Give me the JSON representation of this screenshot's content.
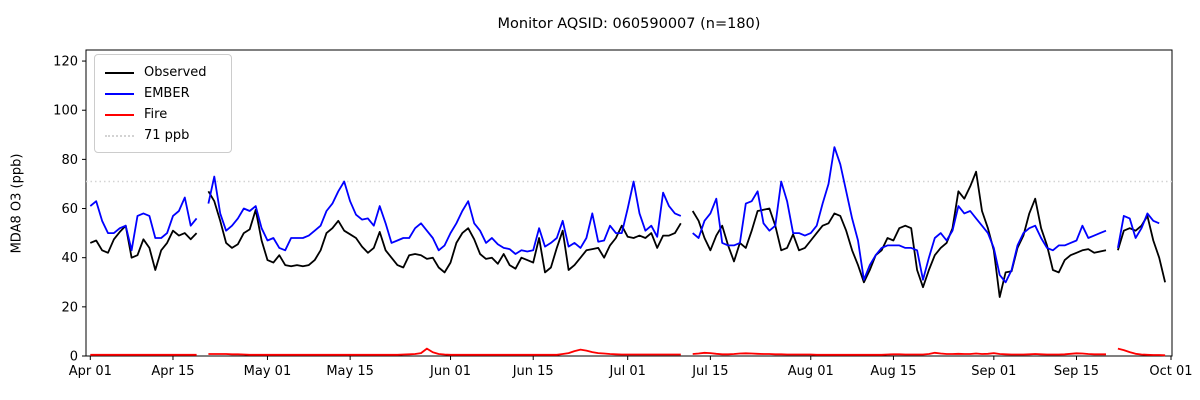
{
  "title": "Monitor AQSID: 060590007 (n=180)",
  "chart_data": {
    "type": "line",
    "title": "Monitor AQSID: 060590007 (n=180)",
    "xlabel": "",
    "ylabel": "MDA8 O3 (ppb)",
    "ylim": [
      0,
      124.5
    ],
    "grid": false,
    "legend_position": "upper left",
    "n_points": 180,
    "x_start_date": "Apr 01",
    "x_end_date": "Oct 01",
    "x_tick_labels": [
      "Apr 01",
      "Apr 15",
      "May 01",
      "May 15",
      "Jun 01",
      "Jun 15",
      "Jul 01",
      "Jul 15",
      "Aug 01",
      "Aug 15",
      "Sep 01",
      "Sep 15",
      "Oct 01"
    ],
    "x_tick_days": [
      0,
      14,
      30,
      44,
      61,
      75,
      91,
      105,
      122,
      136,
      153,
      167,
      183
    ],
    "y_ticks": [
      0,
      20,
      40,
      60,
      80,
      100,
      120
    ],
    "threshold": {
      "value": 71,
      "label": "71 ppb",
      "color": "#d3d3d3",
      "style": "dotted"
    },
    "legend": [
      {
        "label": "Observed",
        "color": "#000000",
        "style": "solid"
      },
      {
        "label": "EMBER",
        "color": "#0000ff",
        "style": "solid"
      },
      {
        "label": "Fire",
        "color": "#ff0000",
        "style": "solid"
      },
      {
        "label": "71 ppb",
        "color": "#d3d3d3",
        "style": "dotted"
      }
    ],
    "series": [
      {
        "name": "Observed",
        "color": "#000000",
        "values": [
          46,
          47,
          43,
          42,
          47.5,
          50.5,
          53,
          40,
          41,
          47.5,
          44,
          35,
          43,
          46,
          51,
          49,
          50,
          47.5,
          50,
          null,
          67,
          63,
          55,
          46,
          44,
          45.5,
          50,
          51.5,
          59.5,
          47,
          39,
          38,
          41,
          37,
          36.5,
          37,
          36.5,
          37,
          39,
          43,
          50,
          52,
          55,
          51,
          49.5,
          48,
          44.5,
          42,
          44,
          50.5,
          43,
          40,
          37,
          36,
          41,
          41.5,
          41,
          39.5,
          40,
          36,
          34,
          38,
          46,
          50,
          52,
          47.5,
          41.5,
          39.5,
          40,
          37.5,
          41.5,
          37,
          35.5,
          40,
          39,
          38,
          48,
          34,
          36,
          44,
          51,
          35,
          37,
          40,
          43,
          43.5,
          44,
          40,
          45,
          48,
          53,
          48.5,
          48,
          49,
          48,
          50,
          44,
          49,
          49,
          50,
          54,
          null,
          59,
          55,
          48,
          43,
          49,
          53,
          45,
          38.5,
          46,
          44,
          51,
          59,
          59.5,
          60,
          53,
          43,
          44,
          49.5,
          43,
          44,
          47,
          50,
          53,
          54,
          58,
          57,
          51,
          43,
          37,
          30,
          35,
          41,
          43,
          48,
          47,
          52,
          53,
          52,
          35,
          28,
          35,
          41,
          44,
          46,
          52,
          67,
          64,
          69,
          75,
          59,
          52,
          43,
          24,
          34,
          34.5,
          44,
          49,
          58,
          64,
          52,
          45,
          35,
          34,
          39,
          41,
          42,
          43,
          43.5,
          42,
          42.5,
          43,
          null,
          43,
          51,
          52,
          51,
          53,
          57,
          47,
          40,
          30
        ]
      },
      {
        "name": "EMBER",
        "color": "#0000ff",
        "values": [
          61,
          63,
          55,
          50,
          50,
          52,
          53,
          43,
          57,
          58,
          57,
          48,
          48,
          50,
          57,
          59,
          64.5,
          53,
          56,
          null,
          62,
          73,
          58,
          51,
          53,
          56,
          60,
          59,
          61,
          52,
          47,
          48,
          44,
          43,
          48,
          48,
          48,
          49,
          51,
          53,
          59,
          62,
          67,
          71,
          63,
          57.5,
          55.5,
          56,
          53,
          61,
          54,
          46,
          47,
          48,
          48,
          52,
          54,
          51,
          48,
          43,
          45,
          50,
          54,
          59,
          63,
          54,
          51,
          46,
          48,
          45.5,
          44,
          43.5,
          41.5,
          43,
          42.5,
          43,
          52,
          44.5,
          46,
          48,
          55,
          44.5,
          46,
          44,
          48,
          58,
          46.5,
          47,
          53,
          50,
          50,
          60,
          71,
          58,
          51,
          53,
          48.5,
          66.5,
          61,
          58,
          57,
          null,
          50,
          48,
          55,
          58,
          64,
          46,
          45,
          45,
          46,
          62,
          63,
          67,
          54,
          51,
          53,
          71,
          63,
          50,
          50,
          49,
          50,
          53,
          62,
          70,
          85,
          78,
          67,
          56,
          47,
          31,
          37,
          41,
          44,
          45,
          45,
          45,
          44,
          44,
          43,
          31,
          40,
          48,
          50,
          47,
          51,
          61,
          58,
          59,
          56,
          53,
          50,
          44,
          33,
          30,
          35,
          45,
          50,
          52,
          53,
          48,
          44,
          43,
          45,
          45,
          46,
          47,
          53,
          48,
          49,
          50,
          51,
          null,
          44,
          57,
          56,
          48,
          52,
          58,
          55,
          54,
          null
        ]
      },
      {
        "name": "Fire",
        "color": "#ff0000",
        "values": [
          0.5,
          0.5,
          0.5,
          0.5,
          0.5,
          0.5,
          0.5,
          0.5,
          0.5,
          0.5,
          0.5,
          0.5,
          0.5,
          0.5,
          0.5,
          0.5,
          0.5,
          0.5,
          0.5,
          null,
          0.8,
          0.8,
          0.8,
          0.8,
          0.7,
          0.7,
          0.6,
          0.5,
          0.5,
          0.5,
          0.5,
          0.5,
          0.5,
          0.5,
          0.5,
          0.5,
          0.5,
          0.5,
          0.5,
          0.5,
          0.5,
          0.5,
          0.5,
          0.5,
          0.5,
          0.5,
          0.5,
          0.5,
          0.5,
          0.5,
          0.5,
          0.5,
          0.5,
          0.6,
          0.7,
          0.8,
          1.2,
          3.0,
          1.5,
          0.8,
          0.6,
          0.5,
          0.5,
          0.5,
          0.5,
          0.5,
          0.5,
          0.5,
          0.5,
          0.5,
          0.5,
          0.5,
          0.5,
          0.5,
          0.5,
          0.5,
          0.5,
          0.5,
          0.5,
          0.5,
          0.8,
          1.2,
          2.0,
          2.6,
          2.2,
          1.6,
          1.2,
          1.0,
          0.8,
          0.7,
          0.6,
          0.6,
          0.6,
          0.6,
          0.6,
          0.6,
          0.6,
          0.6,
          0.6,
          0.6,
          0.6,
          null,
          0.8,
          1.0,
          1.3,
          1.2,
          0.9,
          0.7,
          0.7,
          0.8,
          1.0,
          1.1,
          1.0,
          0.9,
          0.8,
          0.8,
          0.7,
          0.7,
          0.6,
          0.6,
          0.6,
          0.6,
          0.6,
          0.5,
          0.5,
          0.5,
          0.5,
          0.5,
          0.5,
          0.5,
          0.5,
          0.5,
          0.5,
          0.5,
          0.5,
          0.6,
          0.7,
          0.7,
          0.6,
          0.6,
          0.6,
          0.6,
          0.8,
          1.3,
          1.0,
          0.8,
          0.8,
          0.9,
          0.8,
          0.8,
          1.0,
          0.8,
          0.9,
          1.2,
          0.8,
          0.7,
          0.6,
          0.6,
          0.6,
          0.7,
          0.8,
          0.7,
          0.6,
          0.6,
          0.6,
          0.7,
          0.9,
          1.1,
          1.0,
          0.8,
          0.7,
          0.7,
          0.7,
          null,
          3.0,
          2.4,
          1.6,
          0.9,
          0.6,
          0.5,
          0.4,
          0.4,
          0.3
        ]
      }
    ]
  }
}
